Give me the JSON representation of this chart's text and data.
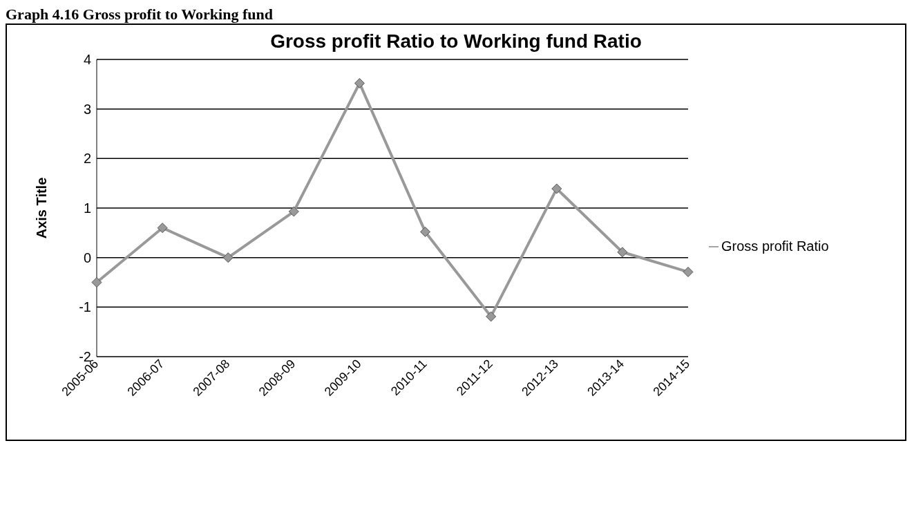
{
  "chart_data": {
    "type": "line",
    "title": "Gross profit Ratio to Working fund Ratio",
    "ylabel": "Axis Title",
    "annotations": [
      "Graph 4.16 Gross profit to Working fund"
    ],
    "categories": [
      "2005-06",
      "2006-07",
      "2007-08",
      "2008-09",
      "2009-10",
      "2010-11",
      "2011-12",
      "2012-13",
      "2013-14",
      "2014-15"
    ],
    "series": [
      {
        "name": "Gross profit Ratio",
        "color": "#999999",
        "values": [
          -0.5,
          0.6,
          0.0,
          0.93,
          3.52,
          0.52,
          -1.19,
          1.39,
          0.11,
          -0.29
        ]
      }
    ],
    "ylim": [
      -2,
      4
    ],
    "yticks": [
      -2,
      -1,
      0,
      1,
      2,
      3,
      4
    ],
    "grid": "y",
    "legend": "right",
    "marker": "diamond",
    "line_style": "solid"
  }
}
